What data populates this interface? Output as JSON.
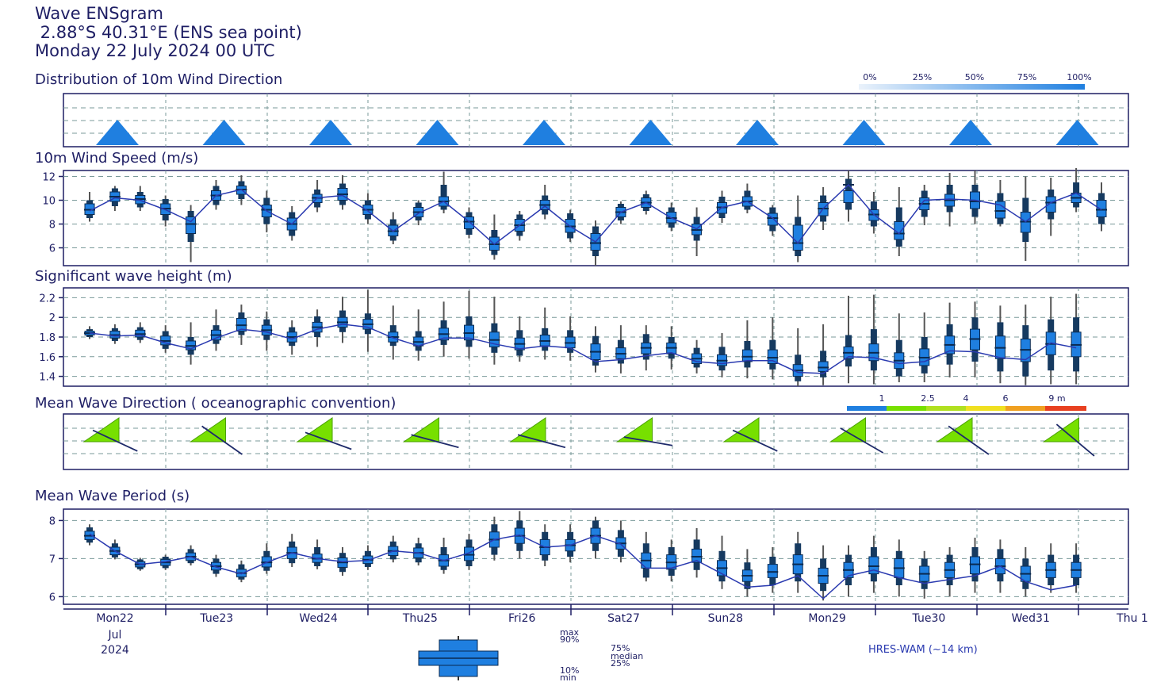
{
  "header": {
    "title": "Wave ENSgram",
    "location": " 2.88°S 40.31°E (ENS sea point)",
    "date": "Monday 22 July 2024 00 UTC"
  },
  "panels": {
    "wind_dir": "Distribution of 10m Wind Direction",
    "wind_speed": "10m Wind Speed (m/s)",
    "wave_height": "Significant wave height (m)",
    "wave_dir": "Mean Wave Direction ( oceanographic convention)",
    "wave_period": "Mean Wave Period (s)"
  },
  "colors": {
    "box": "#1f7fe0",
    "line": "#2a3ab0",
    "sector": "#77e000"
  },
  "wind_dir_legend": [
    "0%",
    "25%",
    "50%",
    "75%",
    "100%"
  ],
  "wave_dir_legend": [
    "1",
    "2.5",
    "4",
    "6",
    "9 m"
  ],
  "days": [
    {
      "label": "Mon22",
      "color": "#1e1e64"
    },
    {
      "label": "Tue23",
      "color": "#1e1e64"
    },
    {
      "label": "Wed24",
      "color": "#1e1e64"
    },
    {
      "label": "Thu25",
      "color": "#1e1e64"
    },
    {
      "label": "Fri26",
      "color": "#1e1e64"
    },
    {
      "label": "Sat27",
      "color": "#1e1e64"
    },
    {
      "label": "Sun28",
      "color": "#d02020"
    },
    {
      "label": "Mon29",
      "color": "#1e1e64"
    },
    {
      "label": "Tue30",
      "color": "#1e1e64"
    },
    {
      "label": "Wed31",
      "color": "#1e1e64"
    },
    {
      "label": "Thu 1",
      "color": "#1e1e64"
    }
  ],
  "month": "Jul",
  "year": "2024",
  "box_legend": {
    "max": "max",
    "p90": "90%",
    "p75": "75%",
    "median": "median",
    "p25": "25%",
    "p10": "10%",
    "min": "min"
  },
  "source": "HRES-WAM (~14 km)",
  "chart_data": [
    {
      "type": "boxplot",
      "title": "10m Wind Speed (m/s)",
      "ylim": [
        4.5,
        12.5
      ],
      "yticks": [
        6,
        8,
        10,
        12
      ],
      "grid": true,
      "median": [
        9.2,
        10.3,
        10.1,
        9.3,
        8.0,
        10.4,
        10.9,
        9.2,
        8.0,
        10.2,
        10.5,
        9.2,
        7.4,
        9.0,
        9.9,
        8.2,
        6.3,
        7.9,
        9.6,
        7.8,
        6.4,
        9.0,
        9.8,
        8.5,
        7.5,
        9.4,
        9.9,
        8.5,
        6.4,
        9.3,
        11.3,
        8.8,
        7.2,
        9.7,
        10.0,
        9.9,
        9.1,
        8.2,
        9.8,
        10.2,
        9.2
      ],
      "p25": [
        8.8,
        9.9,
        9.7,
        8.8,
        7.2,
        10.0,
        10.5,
        8.6,
        7.5,
        9.8,
        10.0,
        8.8,
        7.0,
        8.6,
        9.5,
        7.6,
        5.8,
        7.4,
        9.2,
        7.3,
        5.8,
        8.6,
        9.4,
        8.1,
        7.1,
        8.9,
        9.5,
        7.9,
        5.8,
        8.7,
        9.8,
        8.3,
        6.7,
        9.2,
        9.5,
        9.3,
        8.5,
        7.3,
        9.0,
        9.8,
        8.6
      ],
      "p75": [
        9.7,
        10.7,
        10.4,
        9.7,
        8.6,
        10.8,
        11.2,
        9.6,
        8.5,
        10.5,
        11.0,
        9.6,
        7.9,
        9.4,
        10.3,
        8.6,
        6.9,
        8.4,
        10.0,
        8.4,
        7.2,
        9.4,
        10.2,
        9.0,
        8.0,
        9.8,
        10.3,
        8.9,
        7.9,
        9.8,
        10.8,
        9.2,
        8.2,
        10.2,
        10.5,
        10.7,
        9.9,
        9.0,
        10.3,
        10.6,
        10.0
      ],
      "p10": [
        8.5,
        9.5,
        9.4,
        8.3,
        6.5,
        9.6,
        10.1,
        8.0,
        7.0,
        9.4,
        9.6,
        8.4,
        6.6,
        8.3,
        9.2,
        7.1,
        5.4,
        7.0,
        8.8,
        6.8,
        5.3,
        8.3,
        9.1,
        7.7,
        6.6,
        8.5,
        9.2,
        7.4,
        5.3,
        8.2,
        9.2,
        7.8,
        6.1,
        8.6,
        9.0,
        8.6,
        8.0,
        6.5,
        8.4,
        9.4,
        8.0
      ],
      "p90": [
        10.0,
        11.0,
        10.7,
        10.1,
        9.1,
        11.2,
        11.6,
        10.2,
        9.0,
        10.9,
        11.4,
        10.0,
        8.4,
        9.8,
        11.3,
        9.0,
        7.5,
        8.8,
        10.4,
        8.9,
        7.8,
        9.7,
        10.5,
        9.4,
        8.6,
        10.3,
        10.8,
        9.4,
        8.6,
        10.4,
        11.8,
        9.9,
        9.4,
        10.8,
        11.3,
        11.3,
        10.6,
        10.2,
        10.9,
        11.5,
        10.6
      ],
      "min": [
        8.2,
        9.1,
        9.1,
        7.8,
        4.8,
        9.2,
        9.6,
        7.3,
        6.6,
        9.0,
        9.2,
        8.0,
        6.3,
        7.9,
        8.9,
        6.8,
        5.0,
        6.6,
        8.4,
        6.5,
        4.5,
        8.0,
        8.8,
        7.4,
        5.3,
        8.1,
        8.9,
        7.0,
        4.8,
        7.5,
        8.2,
        7.2,
        5.3,
        7.9,
        7.8,
        8.0,
        7.8,
        4.9,
        7.0,
        9.0,
        7.4
      ],
      "max": [
        10.7,
        11.2,
        11.2,
        10.4,
        9.6,
        11.7,
        12.1,
        10.8,
        9.5,
        11.7,
        12.1,
        10.6,
        9.0,
        10.0,
        12.4,
        9.4,
        8.8,
        9.1,
        11.3,
        9.2,
        8.3,
        9.9,
        10.8,
        9.8,
        9.4,
        10.8,
        11.4,
        9.6,
        10.4,
        11.1,
        12.5,
        10.7,
        11.1,
        11.3,
        12.3,
        12.5,
        11.7,
        12.0,
        11.9,
        12.7,
        11.5
      ],
      "line": [
        9.1,
        10.2,
        10.0,
        9.2,
        8.2,
        10.4,
        10.9,
        9.1,
        8.0,
        10.2,
        10.4,
        9.1,
        7.4,
        8.9,
        9.9,
        8.2,
        6.3,
        7.9,
        9.5,
        7.8,
        6.5,
        9.0,
        9.8,
        8.5,
        7.6,
        9.4,
        9.9,
        8.5,
        6.4,
        9.3,
        11.3,
        8.8,
        7.2,
        10.0,
        10.1,
        10.0,
        9.6,
        8.2,
        9.8,
        10.6,
        9.2
      ]
    },
    {
      "type": "boxplot",
      "title": "Significant wave height (m)",
      "ylim": [
        1.3,
        2.3
      ],
      "yticks": [
        1.4,
        1.6,
        1.8,
        2.0,
        2.2
      ],
      "ytick_labels": [
        "1.4",
        "1.6",
        "1.8",
        "2",
        "2.2"
      ],
      "grid": true,
      "median": [
        1.84,
        1.82,
        1.83,
        1.76,
        1.71,
        1.82,
        1.92,
        1.87,
        1.8,
        1.9,
        1.95,
        1.93,
        1.8,
        1.75,
        1.83,
        1.84,
        1.77,
        1.73,
        1.76,
        1.74,
        1.65,
        1.63,
        1.69,
        1.69,
        1.58,
        1.56,
        1.6,
        1.59,
        1.46,
        1.49,
        1.64,
        1.64,
        1.56,
        1.59,
        1.72,
        1.78,
        1.69,
        1.67,
        1.73,
        1.72
      ],
      "p25": [
        1.82,
        1.79,
        1.8,
        1.72,
        1.67,
        1.77,
        1.86,
        1.82,
        1.75,
        1.85,
        1.9,
        1.88,
        1.75,
        1.71,
        1.77,
        1.77,
        1.7,
        1.67,
        1.71,
        1.69,
        1.57,
        1.58,
        1.63,
        1.63,
        1.53,
        1.51,
        1.55,
        1.53,
        1.4,
        1.45,
        1.58,
        1.56,
        1.48,
        1.51,
        1.63,
        1.67,
        1.58,
        1.55,
        1.62,
        1.6
      ],
      "p75": [
        1.86,
        1.86,
        1.87,
        1.81,
        1.76,
        1.87,
        1.99,
        1.92,
        1.85,
        1.95,
        2.0,
        1.98,
        1.85,
        1.8,
        1.89,
        1.92,
        1.85,
        1.79,
        1.82,
        1.8,
        1.73,
        1.69,
        1.74,
        1.74,
        1.63,
        1.62,
        1.67,
        1.67,
        1.52,
        1.55,
        1.7,
        1.73,
        1.64,
        1.68,
        1.81,
        1.88,
        1.81,
        1.78,
        1.85,
        1.85
      ],
      "p10": [
        1.8,
        1.76,
        1.77,
        1.68,
        1.62,
        1.73,
        1.82,
        1.77,
        1.71,
        1.8,
        1.85,
        1.83,
        1.71,
        1.66,
        1.72,
        1.7,
        1.64,
        1.61,
        1.66,
        1.64,
        1.51,
        1.53,
        1.57,
        1.58,
        1.49,
        1.46,
        1.49,
        1.47,
        1.35,
        1.39,
        1.5,
        1.46,
        1.4,
        1.43,
        1.52,
        1.55,
        1.45,
        1.4,
        1.46,
        1.45
      ],
      "p90": [
        1.88,
        1.89,
        1.9,
        1.86,
        1.8,
        1.92,
        2.05,
        1.98,
        1.9,
        2.01,
        2.07,
        2.04,
        1.92,
        1.86,
        1.97,
        2.01,
        1.94,
        1.87,
        1.89,
        1.87,
        1.81,
        1.77,
        1.83,
        1.8,
        1.69,
        1.7,
        1.76,
        1.77,
        1.62,
        1.66,
        1.82,
        1.88,
        1.77,
        1.8,
        1.93,
        2.0,
        1.95,
        1.92,
        1.98,
        2.0
      ],
      "min": [
        1.78,
        1.73,
        1.74,
        1.64,
        1.52,
        1.66,
        1.72,
        1.66,
        1.62,
        1.7,
        1.74,
        1.65,
        1.57,
        1.56,
        1.6,
        1.58,
        1.52,
        1.55,
        1.57,
        1.56,
        1.44,
        1.43,
        1.46,
        1.47,
        1.43,
        1.39,
        1.38,
        1.37,
        1.3,
        1.31,
        1.33,
        1.32,
        1.34,
        1.34,
        1.39,
        1.39,
        1.33,
        1.31,
        1.32,
        1.32
      ],
      "max": [
        1.91,
        1.93,
        1.95,
        1.92,
        1.95,
        2.08,
        2.13,
        2.06,
        1.97,
        2.08,
        2.21,
        2.28,
        2.12,
        2.08,
        2.16,
        2.27,
        2.21,
        2.01,
        2.1,
        2.01,
        1.91,
        1.92,
        1.92,
        1.91,
        1.77,
        1.84,
        1.97,
        2.0,
        1.89,
        1.93,
        2.22,
        2.23,
        2.04,
        2.05,
        2.15,
        2.16,
        2.12,
        2.13,
        2.21,
        2.24
      ],
      "line": [
        1.84,
        1.81,
        1.82,
        1.74,
        1.68,
        1.79,
        1.88,
        1.85,
        1.78,
        1.88,
        1.93,
        1.9,
        1.79,
        1.71,
        1.79,
        1.79,
        1.73,
        1.68,
        1.71,
        1.69,
        1.55,
        1.57,
        1.61,
        1.64,
        1.55,
        1.53,
        1.56,
        1.56,
        1.44,
        1.43,
        1.6,
        1.59,
        1.53,
        1.55,
        1.66,
        1.65,
        1.59,
        1.57,
        1.74,
        1.69
      ]
    },
    {
      "type": "boxplot",
      "title": "Mean Wave Period (s)",
      "ylim": [
        5.8,
        8.3
      ],
      "yticks": [
        6,
        7,
        8
      ],
      "grid": true,
      "median": [
        7.6,
        7.2,
        6.85,
        6.9,
        7.05,
        6.8,
        6.62,
        6.9,
        7.15,
        7.0,
        6.9,
        6.97,
        7.2,
        7.15,
        6.95,
        7.1,
        7.5,
        7.6,
        7.3,
        7.35,
        7.6,
        7.4,
        6.95,
        6.9,
        7.05,
        6.75,
        6.55,
        6.65,
        6.85,
        6.55,
        6.7,
        6.8,
        6.75,
        6.6,
        6.7,
        6.85,
        6.8,
        6.6,
        6.7,
        6.7
      ],
      "p25": [
        7.5,
        7.1,
        6.78,
        6.82,
        6.95,
        6.7,
        6.52,
        6.78,
        7.0,
        6.9,
        6.77,
        6.87,
        7.08,
        7.02,
        6.8,
        6.95,
        7.3,
        7.4,
        7.1,
        7.2,
        7.4,
        7.25,
        6.75,
        6.72,
        6.9,
        6.55,
        6.4,
        6.5,
        6.6,
        6.35,
        6.5,
        6.6,
        6.5,
        6.4,
        6.5,
        6.6,
        6.6,
        6.4,
        6.5,
        6.5
      ],
      "p75": [
        7.72,
        7.3,
        6.92,
        6.98,
        7.15,
        6.9,
        6.72,
        7.05,
        7.3,
        7.12,
        7.02,
        7.07,
        7.32,
        7.28,
        7.1,
        7.3,
        7.7,
        7.8,
        7.5,
        7.5,
        7.8,
        7.55,
        7.15,
        7.1,
        7.25,
        6.95,
        6.7,
        6.85,
        7.1,
        6.75,
        6.9,
        7.05,
        7.0,
        6.8,
        6.9,
        7.05,
        7.0,
        6.8,
        6.9,
        6.9
      ],
      "p10": [
        7.42,
        7.03,
        6.72,
        6.75,
        6.88,
        6.6,
        6.45,
        6.68,
        6.88,
        6.8,
        6.65,
        6.78,
        6.98,
        6.9,
        6.7,
        6.8,
        7.1,
        7.2,
        6.95,
        7.05,
        7.2,
        7.05,
        6.5,
        6.55,
        6.7,
        6.4,
        6.2,
        6.3,
        6.4,
        6.15,
        6.3,
        6.4,
        6.3,
        6.2,
        6.3,
        6.4,
        6.4,
        6.2,
        6.3,
        6.3
      ],
      "p90": [
        7.82,
        7.4,
        6.98,
        7.05,
        7.25,
        7.0,
        6.85,
        7.2,
        7.45,
        7.3,
        7.15,
        7.2,
        7.45,
        7.4,
        7.3,
        7.5,
        7.9,
        8.0,
        7.7,
        7.7,
        8.0,
        7.75,
        7.4,
        7.3,
        7.5,
        7.2,
        6.9,
        7.05,
        7.4,
        7.0,
        7.1,
        7.3,
        7.2,
        7.0,
        7.1,
        7.3,
        7.25,
        7.0,
        7.1,
        7.1
      ],
      "min": [
        7.35,
        6.98,
        6.68,
        6.7,
        6.82,
        6.52,
        6.38,
        6.6,
        6.78,
        6.72,
        6.55,
        6.7,
        6.9,
        6.82,
        6.6,
        6.7,
        6.95,
        7.0,
        6.8,
        6.9,
        7.0,
        6.9,
        6.4,
        6.4,
        6.5,
        6.2,
        6.0,
        6.1,
        6.1,
        5.9,
        6.0,
        6.1,
        6.0,
        5.95,
        6.0,
        6.1,
        6.1,
        6.0,
        6.1,
        6.1
      ],
      "max": [
        7.9,
        7.5,
        7.02,
        7.1,
        7.35,
        7.1,
        6.95,
        7.4,
        7.65,
        7.5,
        7.3,
        7.35,
        7.6,
        7.55,
        7.55,
        7.65,
        8.1,
        8.25,
        7.9,
        7.9,
        8.1,
        8.0,
        7.7,
        7.5,
        7.8,
        7.6,
        7.25,
        7.3,
        7.7,
        7.35,
        7.35,
        7.6,
        7.5,
        7.2,
        7.3,
        7.55,
        7.5,
        7.3,
        7.4,
        7.4
      ],
      "line": [
        7.65,
        7.2,
        6.85,
        6.92,
        7.05,
        6.78,
        6.6,
        6.9,
        7.15,
        7.0,
        6.92,
        6.95,
        7.2,
        7.15,
        6.95,
        7.15,
        7.5,
        7.62,
        7.3,
        7.35,
        7.6,
        7.38,
        6.75,
        6.75,
        6.95,
        6.6,
        6.25,
        6.3,
        6.55,
        5.95,
        6.55,
        6.7,
        6.5,
        6.35,
        6.45,
        6.55,
        6.8,
        6.4,
        6.18,
        6.3
      ]
    },
    {
      "type": "rose",
      "title": "Distribution of 10m Wind Direction",
      "days": 10,
      "pattern": "single northward (up) triangle per day"
    },
    {
      "type": "rose",
      "title": "Mean Wave Direction ( oceanographic convention)",
      "mean_direction_deg": [
        115,
        125,
        110,
        105,
        105,
        100,
        115,
        120,
        125,
        130
      ]
    }
  ]
}
